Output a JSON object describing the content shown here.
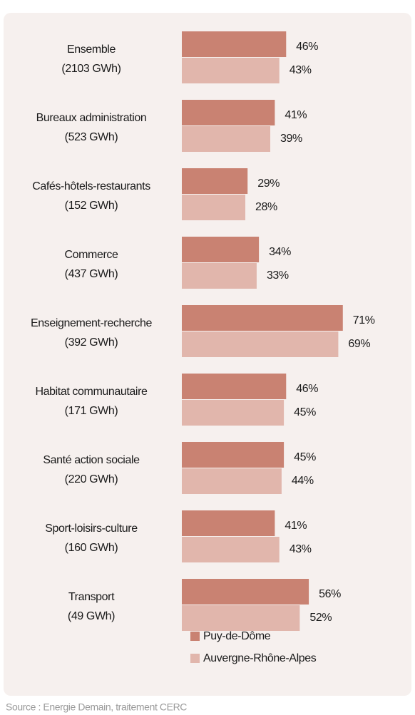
{
  "chart_data": {
    "type": "bar",
    "orientation": "horizontal",
    "categories": [
      [
        "Ensemble",
        "(2103 GWh)"
      ],
      [
        "Bureaux administration",
        "(523 GWh)"
      ],
      [
        "Cafés-hôtels-restaurants",
        "(152 GWh)"
      ],
      [
        "Commerce",
        "(437 GWh)"
      ],
      [
        "Enseignement-recherche",
        "(392 GWh)"
      ],
      [
        "Habitat communautaire",
        "(171 GWh)"
      ],
      [
        "Santé action sociale",
        "(220 GWh)"
      ],
      [
        "Sport-loisirs-culture",
        "(160 GWh)"
      ],
      [
        "Transport",
        "(49 GWh)"
      ]
    ],
    "series": [
      {
        "name": "Puy-de-Dôme",
        "color": "#c98272",
        "values": [
          46,
          41,
          29,
          34,
          71,
          46,
          45,
          41,
          56
        ],
        "value_labels": [
          "46%",
          "41%",
          "29%",
          "34%",
          "71%",
          "46%",
          "45%",
          "41%",
          "56%"
        ]
      },
      {
        "name": "Auvergne-Rhône-Alpes",
        "color": "#e1b6ac",
        "values": [
          43,
          39,
          28,
          33,
          69,
          45,
          44,
          43,
          52
        ],
        "value_labels": [
          "43%",
          "39%",
          "28%",
          "33%",
          "69%",
          "45%",
          "44%",
          "43%",
          "52%"
        ]
      }
    ],
    "xlim": [
      0,
      100
    ],
    "source": "Source : Energie Demain, traitement CERC"
  }
}
